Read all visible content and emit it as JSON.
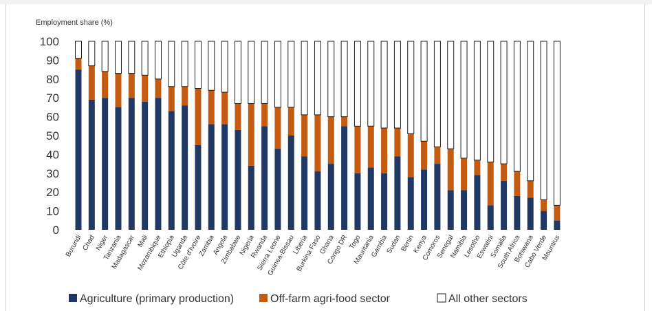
{
  "chart_data": {
    "type": "bar",
    "stacked": true,
    "ylabel": "Employment share (%)",
    "ylim": [
      0,
      100
    ],
    "yticks": [
      0,
      10,
      20,
      30,
      40,
      50,
      60,
      70,
      80,
      90,
      100
    ],
    "grid": false,
    "legend_position": "bottom",
    "categories": [
      "Burundi",
      "Chad",
      "Niger",
      "Tanzania",
      "Madagascar",
      "Mali",
      "Mozambique",
      "Ethiopia",
      "Uganda",
      "Côte d'Ivoire",
      "Zambia",
      "Angola",
      "Zimbabwe",
      "Nigeria",
      "Rwanda",
      "Sierra Leone",
      "Guinea-Bissau",
      "Liberia",
      "Burkina Faso",
      "Ghana",
      "Congo DR",
      "Togo",
      "Mauritania",
      "Gambia",
      "Sudan",
      "Benin",
      "Kenya",
      "Comoros",
      "Senegal",
      "Namibia",
      "Lesotho",
      "Eswatini",
      "Somalia",
      "South Africa",
      "Botswana",
      "Cabo Verde",
      "Mauritius"
    ],
    "series": [
      {
        "name": "Agriculture (primary production)",
        "color": "#203864",
        "values": [
          85,
          69,
          70,
          65,
          70,
          68,
          70,
          63,
          66,
          45,
          56,
          56,
          53,
          34,
          55,
          43,
          50,
          39,
          31,
          35,
          55,
          30,
          33,
          30,
          39,
          28,
          32,
          35,
          21,
          21,
          29,
          13,
          26,
          18,
          17,
          10,
          5
        ]
      },
      {
        "name": "Off-farm agri-food sector",
        "color": "#c55a11",
        "values": [
          6,
          18,
          14,
          18,
          13,
          14,
          10,
          13,
          10,
          30,
          18,
          17,
          14,
          33,
          12,
          22,
          15,
          22,
          30,
          25,
          5,
          25,
          22,
          24,
          15,
          23,
          15,
          9,
          22,
          17,
          8,
          23,
          9,
          13,
          9,
          6,
          8
        ]
      },
      {
        "name": "All other sectors",
        "color": "#ffffff",
        "values": [
          9,
          13,
          16,
          17,
          17,
          18,
          20,
          24,
          24,
          25,
          26,
          27,
          33,
          33,
          33,
          35,
          35,
          39,
          39,
          40,
          40,
          45,
          45,
          46,
          46,
          49,
          53,
          56,
          57,
          62,
          63,
          64,
          65,
          69,
          74,
          84,
          87
        ]
      }
    ]
  }
}
